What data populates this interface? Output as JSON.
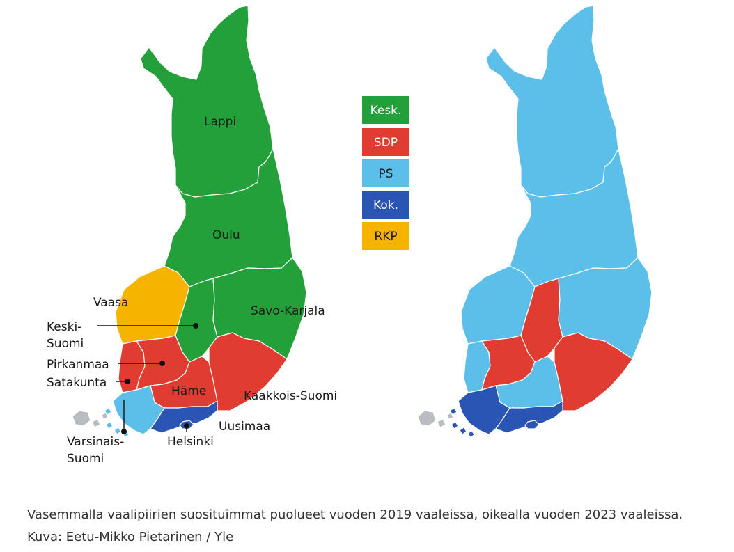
{
  "colors": {
    "kesk": "#23a03a",
    "sdp": "#e03c31",
    "ps": "#5bbfea",
    "kok": "#2a55b5",
    "rkp": "#f6b400",
    "aland": "#b9bcc0"
  },
  "legend": [
    {
      "key": "kesk",
      "label": "Kesk.",
      "text_color": "#ffffff"
    },
    {
      "key": "sdp",
      "label": "SDP",
      "text_color": "#ffffff"
    },
    {
      "key": "ps",
      "label": "PS",
      "text_color": "#1a1a1a"
    },
    {
      "key": "kok",
      "label": "Kok.",
      "text_color": "#ffffff"
    },
    {
      "key": "rkp",
      "label": "RKP",
      "text_color": "#1a1a1a"
    }
  ],
  "labels": {
    "lappi": "Lappi",
    "oulu": "Oulu",
    "vaasa": "Vaasa",
    "savo_karjala": "Savo-Karjala",
    "keski_suomi_1": "Keski-",
    "keski_suomi_2": "Suomi",
    "pirkanmaa": "Pirkanmaa",
    "satakunta": "Satakunta",
    "hame": "Häme",
    "kaakkois_suomi": "Kaakkois-Suomi",
    "uusimaa": "Uusimaa",
    "helsinki": "Helsinki",
    "varsinais_suomi_1": "Varsinais-",
    "varsinais_suomi_2": "Suomi"
  },
  "election_2019": {
    "lappi": "kesk",
    "oulu": "kesk",
    "vaasa": "rkp",
    "keski_suomi": "kesk",
    "savo_karjala": "kesk",
    "satakunta": "sdp",
    "pirkanmaa": "sdp",
    "hame": "sdp",
    "kaakkois_suomi": "sdp",
    "varsinais_suomi": "ps",
    "uusimaa": "kok",
    "helsinki": "kok"
  },
  "election_2023": {
    "lappi": "ps",
    "oulu": "ps",
    "vaasa": "ps",
    "keski_suomi": "sdp",
    "savo_karjala": "ps",
    "satakunta": "ps",
    "pirkanmaa": "sdp",
    "hame": "ps",
    "kaakkois_suomi": "sdp",
    "varsinais_suomi": "kok",
    "uusimaa": "kok",
    "helsinki": "kok"
  },
  "caption": "Vasemmalla vaalipiirien suosituimmat puolueet vuoden 2019 vaaleissa, oikealla vuoden 2023 vaaleissa. Kuva: Eetu-Mikko Pietarinen / Yle"
}
